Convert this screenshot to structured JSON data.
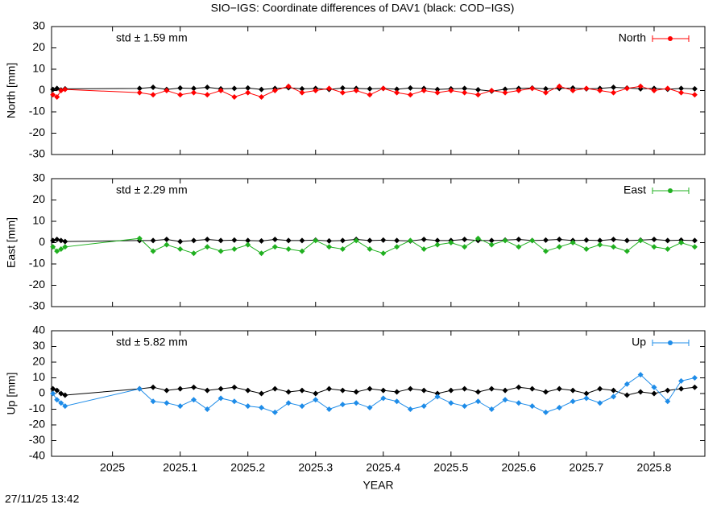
{
  "title": "SIO−IGS: Coordinate differences of DAV1 (black: COD−IGS)",
  "timestamp": "27/11/25 13:42",
  "chart_data": [
    {
      "type": "line",
      "ylabel": "North [mm]",
      "annotation": "std ± 1.59 mm",
      "legend": "top-right",
      "grid": false,
      "xlim": [
        2024.91,
        2025.875
      ],
      "xticks": [
        2025,
        2025.1,
        2025.2,
        2025.3,
        2025.4,
        2025.5,
        2025.6,
        2025.7,
        2025.8
      ],
      "ylim": [
        -30,
        30
      ],
      "yticks": [
        -30,
        -20,
        -10,
        0,
        10,
        20,
        30
      ],
      "x": [
        2024.912,
        2024.918,
        2024.924,
        2024.93,
        2025.04,
        2025.06,
        2025.08,
        2025.1,
        2025.12,
        2025.14,
        2025.16,
        2025.18,
        2025.2,
        2025.22,
        2025.24,
        2025.26,
        2025.28,
        2025.3,
        2025.32,
        2025.34,
        2025.36,
        2025.38,
        2025.4,
        2025.42,
        2025.44,
        2025.46,
        2025.48,
        2025.5,
        2025.52,
        2025.54,
        2025.56,
        2025.58,
        2025.6,
        2025.62,
        2025.64,
        2025.66,
        2025.68,
        2025.7,
        2025.72,
        2025.74,
        2025.76,
        2025.78,
        2025.8,
        2025.82,
        2025.84,
        2025.86
      ],
      "series": [
        {
          "color": "#000000",
          "values": [
            0.5,
            1,
            0.3,
            0.8,
            1,
            1.5,
            0.5,
            1.2,
            1,
            1.5,
            0.8,
            1,
            1.2,
            0.5,
            1,
            1.3,
            0.8,
            1,
            0.5,
            1.2,
            1,
            0.8,
            1,
            0.6,
            1.2,
            1,
            0.5,
            0.8,
            1,
            0.4,
            -0.3,
            0.6,
            1,
            1.2,
            0.8,
            1,
            1.2,
            0.8,
            1,
            1.5,
            1.2,
            0.8,
            1,
            0.6,
            1,
            0.8
          ]
        },
        {
          "name": "North",
          "color": "#ff0000",
          "values": [
            -2,
            -3,
            0,
            0.5,
            -1,
            -2,
            0,
            -2,
            -1,
            -2,
            0,
            -3,
            -1,
            -3,
            0,
            2,
            -1,
            0,
            1,
            -1,
            0,
            -2,
            1,
            -1,
            -2,
            0,
            -1,
            0,
            -1,
            -2,
            0,
            -1,
            0,
            1,
            -1,
            2,
            0,
            1,
            0,
            -1,
            1,
            2,
            0,
            1,
            -1,
            -2
          ]
        }
      ]
    },
    {
      "type": "line",
      "ylabel": "East [mm]",
      "annotation": "std ± 2.29 mm",
      "legend": "top-right",
      "grid": false,
      "xlim": [
        2024.91,
        2025.875
      ],
      "xticks": [
        2025,
        2025.1,
        2025.2,
        2025.3,
        2025.4,
        2025.5,
        2025.6,
        2025.7,
        2025.8
      ],
      "ylim": [
        -30,
        30
      ],
      "yticks": [
        -30,
        -20,
        -10,
        0,
        10,
        20,
        30
      ],
      "x": [
        2024.912,
        2024.918,
        2024.924,
        2024.93,
        2025.04,
        2025.06,
        2025.08,
        2025.1,
        2025.12,
        2025.14,
        2025.16,
        2025.18,
        2025.2,
        2025.22,
        2025.24,
        2025.26,
        2025.28,
        2025.3,
        2025.32,
        2025.34,
        2025.36,
        2025.38,
        2025.4,
        2025.42,
        2025.44,
        2025.46,
        2025.48,
        2025.5,
        2025.52,
        2025.54,
        2025.56,
        2025.58,
        2025.6,
        2025.62,
        2025.64,
        2025.66,
        2025.68,
        2025.7,
        2025.72,
        2025.74,
        2025.76,
        2025.78,
        2025.8,
        2025.82,
        2025.84,
        2025.86
      ],
      "series": [
        {
          "color": "#000000",
          "values": [
            1,
            1.5,
            1,
            0.5,
            1,
            1,
            1.5,
            0.5,
            1,
            1.5,
            1,
            1.2,
            1,
            0.8,
            1.5,
            1,
            1,
            1.2,
            0.8,
            1,
            1.5,
            1,
            1.2,
            1,
            0.8,
            1.5,
            1,
            1,
            1.5,
            1,
            1,
            1.2,
            1.5,
            1,
            1.2,
            1.5,
            1,
            1.2,
            1,
            1.5,
            1,
            1.2,
            1.5,
            1,
            1.2,
            1
          ]
        },
        {
          "name": "East",
          "color": "#20b020",
          "values": [
            -2,
            -4,
            -3,
            -2,
            2,
            -4,
            -1,
            -3,
            -5,
            -2,
            -4,
            -3,
            -1,
            -5,
            -2,
            -3,
            -4,
            1,
            -2,
            -3,
            1,
            -3,
            -5,
            -2,
            1,
            -3,
            -1,
            0,
            -2,
            2,
            -1,
            1,
            -2,
            1,
            -4,
            -2,
            0,
            -3,
            -1,
            -2,
            -4,
            1,
            -2,
            -3,
            0,
            -2
          ]
        }
      ]
    },
    {
      "type": "line",
      "ylabel": "Up [mm]",
      "xlabel": "YEAR",
      "annotation": "std ± 5.82 mm",
      "legend": "top-right",
      "grid": false,
      "xlim": [
        2024.91,
        2025.875
      ],
      "xticks": [
        2025,
        2025.1,
        2025.2,
        2025.3,
        2025.4,
        2025.5,
        2025.6,
        2025.7,
        2025.8
      ],
      "ylim": [
        -40,
        40
      ],
      "yticks": [
        -40,
        -30,
        -20,
        -10,
        0,
        10,
        20,
        30,
        40
      ],
      "x": [
        2024.912,
        2024.918,
        2024.924,
        2024.93,
        2025.04,
        2025.06,
        2025.08,
        2025.1,
        2025.12,
        2025.14,
        2025.16,
        2025.18,
        2025.2,
        2025.22,
        2025.24,
        2025.26,
        2025.28,
        2025.3,
        2025.32,
        2025.34,
        2025.36,
        2025.38,
        2025.4,
        2025.42,
        2025.44,
        2025.46,
        2025.48,
        2025.5,
        2025.52,
        2025.54,
        2025.56,
        2025.58,
        2025.6,
        2025.62,
        2025.64,
        2025.66,
        2025.68,
        2025.7,
        2025.72,
        2025.74,
        2025.76,
        2025.78,
        2025.8,
        2025.82,
        2025.84,
        2025.86
      ],
      "series": [
        {
          "color": "#000000",
          "values": [
            3,
            2,
            0,
            -1,
            3,
            4,
            2,
            3,
            4,
            2,
            3,
            4,
            2,
            0,
            3,
            1,
            2,
            0,
            3,
            2,
            1,
            3,
            2,
            1,
            3,
            2,
            0,
            2,
            3,
            1,
            3,
            2,
            4,
            3,
            1,
            3,
            2,
            0,
            3,
            2,
            -1,
            1,
            0,
            2,
            3,
            4
          ]
        },
        {
          "name": "Up",
          "color": "#1e8ce8",
          "values": [
            0,
            -4,
            -6,
            -8,
            3,
            -5,
            -6,
            -8,
            -4,
            -10,
            -3,
            -5,
            -8,
            -9,
            -12,
            -6,
            -8,
            -4,
            -10,
            -7,
            -6,
            -9,
            -3,
            -5,
            -10,
            -8,
            -2,
            -6,
            -8,
            -5,
            -10,
            -4,
            -6,
            -8,
            -12,
            -9,
            -5,
            -3,
            -6,
            -2,
            6,
            12,
            4,
            -5,
            8,
            10
          ]
        }
      ]
    }
  ]
}
